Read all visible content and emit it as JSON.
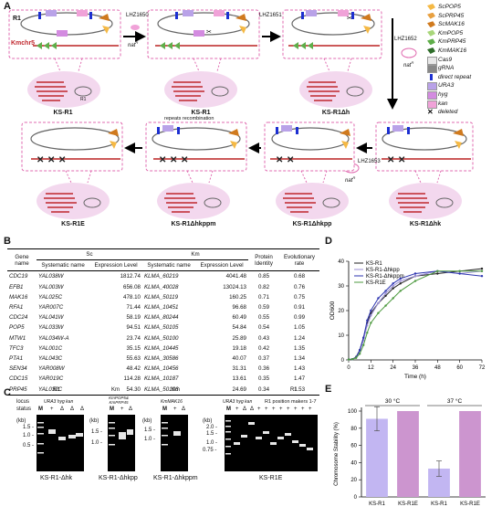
{
  "panels": {
    "a": "A",
    "b": "B",
    "c": "C",
    "d": "D",
    "e": "E"
  },
  "panel_a": {
    "chromosome_label": "R1",
    "kmchr_label": "Kmchr5",
    "arrows": [
      "LHZ1650",
      "LHZ1651",
      "LHZ1652",
      "LHZ1653"
    ],
    "nat_label": "nat",
    "nat_sup": "R",
    "repeats_label": "repeats recombination",
    "cell_r1": "R1",
    "strains_top": [
      "KS-R1",
      "KS-R1",
      "KS-R1Δh"
    ],
    "strains_bottom": [
      "KS-R1E",
      "KS-R1Δhkppm",
      "KS-R1Δhkpp",
      "KS-R1Δhk"
    ],
    "legend": [
      {
        "label": "ScPOP5",
        "color": "#f5b945",
        "icon": "shape"
      },
      {
        "label": "ScPRP45",
        "color": "#e8a040",
        "icon": "shape"
      },
      {
        "label": "ScMAK16",
        "color": "#d07a1e",
        "icon": "shape"
      },
      {
        "label": "KmPOP5",
        "color": "#a8d67a",
        "icon": "shape"
      },
      {
        "label": "KmPRP45",
        "color": "#5fae4a",
        "icon": "shape"
      },
      {
        "label": "KmMAK16",
        "color": "#2f6d2a",
        "icon": "shape"
      },
      {
        "label": "Cas9",
        "color": "#e8e8e8",
        "icon": "rect"
      },
      {
        "label": "gRNA",
        "color": "#888888",
        "icon": "rect"
      },
      {
        "label": "direct repeat",
        "color": "#1c2fd1",
        "icon": "bar"
      },
      {
        "label": "URA3",
        "color": "#b9a2e8",
        "icon": "rect"
      },
      {
        "label": "hyg",
        "color": "#d38be0",
        "icon": "rect"
      },
      {
        "label": "kan",
        "color": "#f0a2d8",
        "icon": "rect"
      },
      {
        "label": "deleted",
        "color": "#000000",
        "icon": "x"
      }
    ]
  },
  "panel_b": {
    "header_sc": "Sc",
    "header_km": "Km",
    "col_gene": "Gene name",
    "col_sys": "Systematic name",
    "col_expr": "Expression Level",
    "col_identity": "Protein Identity",
    "col_evo": "Evolutionary rate",
    "rows": [
      [
        "CDC19",
        "YAL038W",
        "1812.74",
        "KLMA_60219",
        "4041.48",
        "0.85",
        "0.68"
      ],
      [
        "EFB1",
        "YAL003W",
        "656.08",
        "KLMA_40028",
        "13024.13",
        "0.82",
        "0.76"
      ],
      [
        "MAK16",
        "YAL025C",
        "478.10",
        "KLMA_50119",
        "160.25",
        "0.71",
        "0.75"
      ],
      [
        "RFA1",
        "YAR007C",
        "71.44",
        "KLMA_10451",
        "96.68",
        "0.59",
        "0.91"
      ],
      [
        "CDC24",
        "YAL041W",
        "58.19",
        "KLMA_80244",
        "60.49",
        "0.55",
        "0.99"
      ],
      [
        "POP5",
        "YAL033W",
        "94.51",
        "KLMA_50105",
        "54.84",
        "0.54",
        "1.05"
      ],
      [
        "MTW1",
        "YAL034W-A",
        "23.74",
        "KLMA_50100",
        "25.89",
        "0.43",
        "1.24"
      ],
      [
        "TFC3",
        "YAL001C",
        "35.15",
        "KLMA_10445",
        "19.18",
        "0.42",
        "1.35"
      ],
      [
        "PTA1",
        "YAL043C",
        "55.63",
        "KLMA_30586",
        "40.07",
        "0.37",
        "1.34"
      ],
      [
        "SEN34",
        "YAR008W",
        "48.42",
        "KLMA_10456",
        "31.31",
        "0.36",
        "1.43"
      ],
      [
        "CDC15",
        "YAR019C",
        "114.28",
        "KLMA_10187",
        "13.61",
        "0.35",
        "1.47"
      ],
      [
        "PRP45",
        "YAL032C",
        "54.30",
        "KLMA_50106",
        "24.69",
        "0.34",
        "1.53"
      ]
    ]
  },
  "panel_c": {
    "groups": [
      "R1",
      "Km",
      "Km",
      "R1"
    ],
    "locus_label": "locus",
    "status_label": "status",
    "kb_label": "(kb)",
    "m_label": "M",
    "gel1": {
      "locus": "URA3 hyg kan",
      "status": [
        "+",
        "Δ",
        "Δ",
        "Δ"
      ],
      "ladder": [
        "1.5 -",
        "1.0 -",
        "0.5 -"
      ],
      "name": "KS-R1-Δhk"
    },
    "gel2": {
      "locus": "KmPOP5& KmPRP45",
      "status": [
        "+",
        "Δ"
      ],
      "ladder": [
        "1.5 -",
        "1.0 -"
      ],
      "name": "KS-R1-Δhkpp"
    },
    "gel3": {
      "locus": "KmMAK16",
      "status": [
        "+",
        "Δ"
      ],
      "ladder": [
        "1.5 -",
        "1.0 -"
      ],
      "name": "KS-R1-Δhkppm"
    },
    "gel4": {
      "locus1": "URA3 hyg kan",
      "locus2": "R1 position makers 1-7",
      "status": [
        "+",
        "Δ",
        "Δ",
        "+",
        "+",
        "+",
        "+",
        "+",
        "+",
        "+",
        "+"
      ],
      "ladder": [
        "2.0 -",
        "1.5 -",
        "1.0 -",
        "0.75 -"
      ],
      "name": "KS-R1E"
    }
  },
  "chart_data": [
    {
      "type": "line",
      "title": "",
      "xlabel": "Time (h)",
      "ylabel": "OD600",
      "xlim": [
        0,
        72
      ],
      "ylim": [
        0,
        40
      ],
      "xticks": [
        0,
        12,
        24,
        36,
        48,
        60,
        72
      ],
      "yticks": [
        0,
        10,
        20,
        30,
        40
      ],
      "legend_position": "top-left",
      "x": [
        0,
        2,
        4,
        6,
        8,
        10,
        12,
        16,
        20,
        24,
        28,
        36,
        48,
        60,
        72
      ],
      "series": [
        {
          "name": "KS-R1",
          "color": "#222222",
          "values": [
            0.2,
            0.3,
            1.2,
            4,
            9,
            15,
            19,
            23,
            26,
            29,
            31,
            34,
            35,
            36,
            37
          ]
        },
        {
          "name": "KS-R1-Δhkpp",
          "color": "#9b8fd6",
          "values": [
            0.2,
            0.3,
            1,
            3.5,
            8,
            14,
            18,
            23,
            27,
            30,
            32,
            34,
            36,
            35,
            36
          ]
        },
        {
          "name": "KS-R1-Δhkppm",
          "color": "#2d35b0",
          "values": [
            0.2,
            0.3,
            1,
            4,
            9,
            16,
            20,
            25,
            28,
            31,
            33,
            35,
            36,
            35,
            34
          ]
        },
        {
          "name": "KS-R1E",
          "color": "#4d9a3f",
          "values": [
            0.2,
            0.3,
            0.8,
            2.5,
            6,
            11,
            15,
            19,
            22,
            25,
            28,
            32,
            36,
            36,
            36
          ]
        }
      ]
    },
    {
      "type": "bar",
      "title": "",
      "ylabel": "Chromosome Stability (%)",
      "ylim": [
        0,
        100
      ],
      "yticks": [
        0,
        20,
        40,
        60,
        80,
        100
      ],
      "groups": [
        "30 °C",
        "37 °C"
      ],
      "categories": [
        "KS-R1",
        "KS-R1E",
        "KS-R1",
        "KS-R1E"
      ],
      "values": [
        91,
        100,
        33,
        100
      ],
      "errors": [
        14,
        0,
        9,
        0
      ],
      "colors": [
        "#c2b6f2",
        "#cc95cf",
        "#c2b6f2",
        "#cc95cf"
      ]
    }
  ]
}
